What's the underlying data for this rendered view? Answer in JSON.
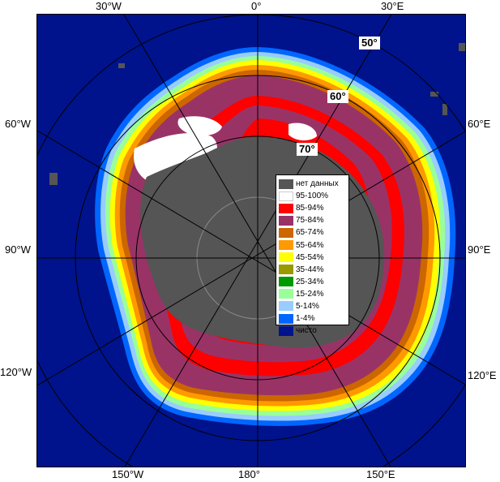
{
  "map": {
    "colors": {
      "ocean": "#00138c",
      "no_data": "#555555",
      "grid": "#8a8a8a"
    },
    "edge_labels": {
      "top": [
        "30°W",
        "0°",
        "30°E"
      ],
      "bottom": [
        "150°W",
        "180°",
        "150°E"
      ],
      "left": [
        "60°W",
        "90°W",
        "120°W"
      ],
      "right": [
        "60°E",
        "90°E",
        "120°E"
      ]
    },
    "latitude_labels": [
      "50°",
      "60°",
      "70°"
    ]
  },
  "legend": {
    "items": [
      {
        "label": "нет данных",
        "color": "#555555"
      },
      {
        "label": "95-100%",
        "color": "#ffffff"
      },
      {
        "label": "85-94%",
        "color": "#ff0000"
      },
      {
        "label": "75-84%",
        "color": "#993366"
      },
      {
        "label": "65-74%",
        "color": "#cc6600"
      },
      {
        "label": "55-64%",
        "color": "#ff9900"
      },
      {
        "label": "45-54%",
        "color": "#ffff00"
      },
      {
        "label": "35-44%",
        "color": "#999900"
      },
      {
        "label": "25-34%",
        "color": "#009900"
      },
      {
        "label": "15-24%",
        "color": "#99ff99"
      },
      {
        "label": "5-14%",
        "color": "#99ccff"
      },
      {
        "label": "1-4%",
        "color": "#0066ff"
      },
      {
        "label": "чисто",
        "color": "#00138c"
      }
    ]
  }
}
